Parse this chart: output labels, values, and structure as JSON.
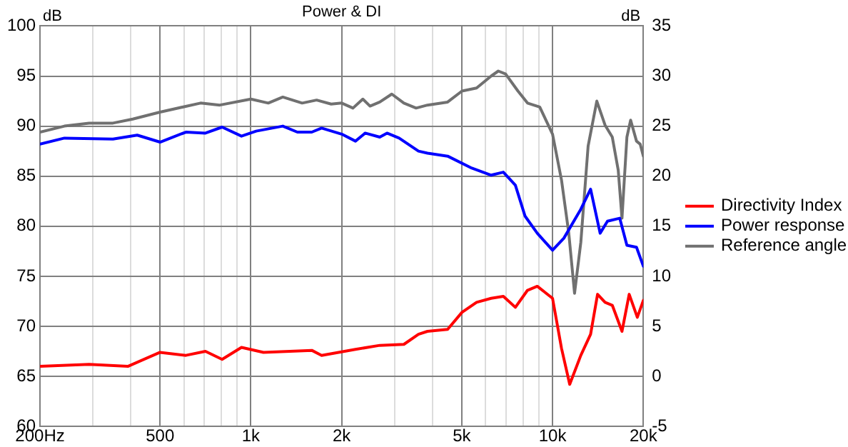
{
  "chart_data": {
    "type": "line",
    "title": "Power & DI",
    "ylabel": "dB",
    "y2label": "dB",
    "log": "x",
    "grid": true,
    "legend": "right",
    "marker": "none",
    "line_style": "solid",
    "xlim": [
      200,
      20000
    ],
    "xticks": [
      {
        "value": 200,
        "label": "200Hz"
      },
      {
        "value": 300,
        "label": null
      },
      {
        "value": 400,
        "label": null
      },
      {
        "value": 500,
        "label": "500"
      },
      {
        "value": 600,
        "label": null
      },
      {
        "value": 700,
        "label": null
      },
      {
        "value": 800,
        "label": null
      },
      {
        "value": 900,
        "label": null
      },
      {
        "value": 1000,
        "label": "1k"
      },
      {
        "value": 2000,
        "label": "2k"
      },
      {
        "value": 3000,
        "label": null
      },
      {
        "value": 4000,
        "label": null
      },
      {
        "value": 5000,
        "label": "5k"
      },
      {
        "value": 6000,
        "label": null
      },
      {
        "value": 7000,
        "label": null
      },
      {
        "value": 8000,
        "label": null
      },
      {
        "value": 9000,
        "label": null
      },
      {
        "value": 10000,
        "label": "10k"
      },
      {
        "value": 20000,
        "label": "20k"
      }
    ],
    "ylim": [
      60,
      100
    ],
    "yticks": [
      60,
      65,
      70,
      75,
      80,
      85,
      90,
      95,
      100
    ],
    "y2lim": [
      -5,
      35
    ],
    "y2ticks": [
      -5,
      0,
      5,
      10,
      15,
      20,
      25,
      30,
      35
    ],
    "series": [
      {
        "name": "Directivity Index",
        "color": "#ff0000",
        "axis": "y2",
        "x": [
          200,
          291,
          391,
          500,
          609,
          707,
          803,
          931,
          1101,
          1592,
          1716,
          2222,
          2675,
          3215,
          3594,
          3850,
          4490,
          5010,
          5600,
          6260,
          6870,
          7530,
          8260,
          8900,
          10000,
          10710,
          11400,
          12410,
          13370,
          14100,
          14930,
          15780,
          16990,
          17950,
          19100,
          20000
        ],
        "values": [
          1.0,
          1.2,
          1.0,
          2.4,
          2.1,
          2.5,
          1.7,
          2.9,
          2.4,
          2.6,
          2.1,
          2.7,
          3.1,
          3.2,
          4.2,
          4.5,
          4.7,
          6.4,
          7.4,
          7.8,
          8.0,
          6.9,
          8.6,
          9.0,
          7.8,
          2.8,
          -0.8,
          2.1,
          4.2,
          8.2,
          7.4,
          7.1,
          4.5,
          8.2,
          5.9,
          7.6
        ]
      },
      {
        "name": "Power response",
        "color": "#0000ff",
        "x": [
          200,
          241,
          349,
          420,
          500,
          609,
          707,
          803,
          931,
          1041,
          1276,
          1426,
          1592,
          1716,
          2000,
          2222,
          2393,
          2675,
          2827,
          3100,
          3594,
          3850,
          4490,
          5400,
          6260,
          6870,
          7530,
          8110,
          8900,
          10000,
          10900,
          12410,
          13370,
          14380,
          15210,
          16700,
          17640,
          18980,
          20000
        ],
        "values": [
          88.2,
          88.8,
          88.7,
          89.1,
          88.4,
          89.4,
          89.3,
          89.9,
          89.0,
          89.5,
          90.0,
          89.4,
          89.4,
          89.8,
          89.2,
          88.5,
          89.3,
          88.9,
          89.3,
          88.8,
          87.5,
          87.3,
          87.0,
          85.8,
          85.1,
          85.4,
          84.1,
          81.0,
          79.3,
          77.6,
          78.8,
          81.7,
          83.7,
          79.3,
          80.5,
          80.8,
          78.1,
          77.9,
          76.0
        ]
      },
      {
        "name": "Reference angle",
        "color": "#707070",
        "x": [
          200,
          241,
          291,
          349,
          406,
          500,
          681,
          789,
          1000,
          1142,
          1276,
          1479,
          1652,
          1846,
          2000,
          2180,
          2350,
          2483,
          2675,
          2932,
          3215,
          3530,
          3850,
          4490,
          5010,
          5600,
          6260,
          6610,
          6990,
          7680,
          8260,
          9070,
          10000,
          10710,
          11320,
          11830,
          12410,
          13120,
          14020,
          14930,
          15780,
          16510,
          16990,
          17640,
          18150,
          18980,
          19520,
          20000
        ],
        "values": [
          89.4,
          90.0,
          90.3,
          90.3,
          90.7,
          91.4,
          92.3,
          92.1,
          92.7,
          92.3,
          92.9,
          92.3,
          92.6,
          92.2,
          92.3,
          91.8,
          92.7,
          92.0,
          92.4,
          93.2,
          92.3,
          91.8,
          92.1,
          92.4,
          93.5,
          93.8,
          95.0,
          95.5,
          95.2,
          93.5,
          92.3,
          91.9,
          89.2,
          84.6,
          79.3,
          73.3,
          78.4,
          88.0,
          92.5,
          90.1,
          88.9,
          85.6,
          80.8,
          88.9,
          90.6,
          88.5,
          88.2,
          87.0
        ]
      }
    ]
  }
}
